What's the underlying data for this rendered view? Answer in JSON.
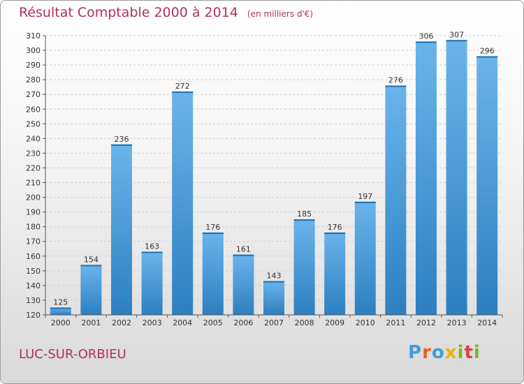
{
  "header": {
    "title": "Résultat Comptable 2000 à 2014",
    "unit": "(en milliers d'€)"
  },
  "footer": {
    "location": "LUC-SUR-ORBIEU",
    "brand": "Proxiti"
  },
  "colors": {
    "title": "#b0305a",
    "bar_top": "#6ab4ec",
    "bar_bottom": "#2d7fc0",
    "grid": "#cccccc",
    "brand_letters": [
      "#3aa0d8",
      "#e8601c",
      "#3aa0d8",
      "#f0b400",
      "#7ab828",
      "#e04040",
      "#7ab828"
    ]
  },
  "chart_data": {
    "type": "bar",
    "title": "Résultat Comptable 2000 à 2014",
    "ylabel": "(en milliers d'€)",
    "xlabel": "",
    "categories": [
      "2000",
      "2001",
      "2002",
      "2003",
      "2004",
      "2005",
      "2006",
      "2007",
      "2008",
      "2009",
      "2010",
      "2011",
      "2012",
      "2013",
      "2014"
    ],
    "values": [
      125,
      154,
      236,
      163,
      272,
      176,
      161,
      143,
      185,
      176,
      197,
      276,
      306,
      307,
      296
    ],
    "ylim": [
      120,
      310
    ],
    "yticks": [
      120,
      130,
      140,
      150,
      160,
      170,
      180,
      190,
      200,
      210,
      220,
      230,
      240,
      250,
      260,
      270,
      280,
      290,
      300,
      310
    ],
    "grid": true,
    "data_labels": true
  }
}
